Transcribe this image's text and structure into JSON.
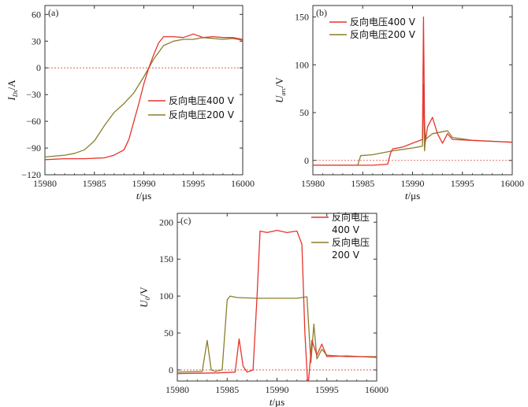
{
  "colors": {
    "v400": "#e8332c",
    "v200": "#8a7e2c",
    "zero": "#d44a3a",
    "axis": "#333333"
  },
  "xlabel": {
    "italic": "t",
    "rest": "/μs"
  },
  "chart_data": [
    {
      "id": "a",
      "type": "line",
      "panel_label": "(a)",
      "ylabel": {
        "main": "I",
        "sub": "Ds",
        "rest": "/A"
      },
      "xlim": [
        15980,
        16000
      ],
      "ylim": [
        -120,
        70
      ],
      "xticks": [
        "15980",
        "15985",
        "15990",
        "15995",
        "16000"
      ],
      "yticks": [
        "60",
        "30",
        "0",
        "−30",
        "−60",
        "−90",
        "−120"
      ],
      "ytick_values": [
        60,
        30,
        0,
        -30,
        -60,
        -90,
        -120
      ],
      "zero_line": true,
      "legend": [
        "反向电压400 V",
        "反向电压200 V"
      ],
      "series": [
        {
          "name": "反向电压400 V",
          "color": "#e8332c",
          "x": [
            15980,
            15982,
            15984,
            15986,
            15987,
            15988,
            15988.5,
            15989,
            15989.5,
            15990,
            15990.5,
            15991,
            15991.5,
            15992,
            15993,
            15994,
            15995,
            15996,
            15997,
            15998,
            15999,
            16000
          ],
          "y": [
            -103,
            -102,
            -102,
            -101,
            -98,
            -92,
            -80,
            -60,
            -40,
            -18,
            0,
            15,
            28,
            35,
            35,
            34,
            38,
            34,
            35,
            34,
            34,
            32
          ]
        },
        {
          "name": "反向电压200 V",
          "color": "#8a7e2c",
          "x": [
            15980,
            15982,
            15983,
            15984,
            15985,
            15986,
            15987,
            15988,
            15989,
            15990,
            15991,
            15992,
            15993,
            15994,
            15995,
            15996,
            15997,
            15998,
            15999,
            16000
          ],
          "y": [
            -100,
            -98,
            -96,
            -92,
            -82,
            -65,
            -50,
            -40,
            -28,
            -10,
            10,
            25,
            30,
            32,
            32,
            34,
            33,
            32,
            33,
            31
          ]
        }
      ]
    },
    {
      "id": "b",
      "type": "line",
      "panel_label": "(b)",
      "ylabel": {
        "main": "U",
        "sub": "arc",
        "rest": "/V"
      },
      "xlim": [
        15980,
        16000
      ],
      "ylim": [
        -15,
        162
      ],
      "xticks": [
        "15980",
        "15985",
        "15990",
        "15995",
        "16000"
      ],
      "yticks": [
        "150",
        "100",
        "50",
        "0"
      ],
      "ytick_values": [
        150,
        100,
        50,
        0
      ],
      "zero_line": true,
      "legend": [
        "反向电压400 V",
        "反向电压200 V"
      ],
      "series": [
        {
          "name": "反向电压400 V",
          "color": "#e8332c",
          "x": [
            15980,
            15982,
            15984,
            15986,
            15987.5,
            15987.8,
            15988,
            15989,
            15990,
            15991,
            15991.1,
            15991.2,
            15991.3,
            15991.5,
            15992,
            15992.5,
            15993,
            15993.5,
            15994,
            15996,
            15998,
            16000
          ],
          "y": [
            -5,
            -5,
            -5,
            -5,
            -4,
            8,
            12,
            14,
            18,
            22,
            150,
            40,
            20,
            35,
            45,
            28,
            18,
            28,
            22,
            21,
            20,
            19
          ]
        },
        {
          "name": "反向电压200 V",
          "color": "#8a7e2c",
          "x": [
            15980,
            15983,
            15984.5,
            15984.8,
            15986,
            15988,
            15990,
            15990.5,
            15991,
            15991.1,
            15991.2,
            15991.3,
            15992,
            15993,
            15993.5,
            15994,
            15996,
            15998,
            16000
          ],
          "y": [
            -5,
            -5,
            -5,
            5,
            6,
            10,
            13,
            14,
            15,
            80,
            10,
            22,
            28,
            30,
            31,
            24,
            21,
            20,
            19
          ]
        }
      ]
    },
    {
      "id": "c",
      "type": "line",
      "panel_label": "(c)",
      "ylabel": {
        "main": "U",
        "sub": "0",
        "rest": "/V"
      },
      "xlim": [
        15980,
        16000
      ],
      "ylim": [
        -15,
        212
      ],
      "xticks": [
        "15980",
        "15985",
        "15990",
        "15995",
        "16000"
      ],
      "yticks": [
        "200",
        "150",
        "100",
        "50",
        "0"
      ],
      "ytick_values": [
        200,
        150,
        100,
        50,
        0
      ],
      "zero_line": true,
      "legend": [
        "反向电压",
        "400 V",
        "反向电压",
        "200 V"
      ],
      "series": [
        {
          "name": "反向电压400 V",
          "color": "#e8332c",
          "x": [
            15980,
            15984,
            15985.8,
            15986.2,
            15986.6,
            15987,
            15987.6,
            15988,
            15988.3,
            15989,
            15990,
            15991,
            15992,
            15992.5,
            15992.8,
            15993.1,
            15993.5,
            15994,
            15994.5,
            15995,
            15997,
            16000
          ],
          "y": [
            -5,
            -4,
            -3,
            42,
            5,
            -3,
            0,
            100,
            188,
            186,
            189,
            186,
            188,
            170,
            50,
            -25,
            40,
            20,
            35,
            18,
            19,
            17
          ]
        },
        {
          "name": "反向电压200 V",
          "color": "#8a7e2c",
          "x": [
            15980,
            15982.5,
            15983,
            15983.4,
            15983.8,
            15984.5,
            15985,
            15985.3,
            15986,
            15988,
            15990,
            15992,
            15993,
            15993.4,
            15993.7,
            15994,
            15994.5,
            15995,
            15997,
            16000
          ],
          "y": [
            -3,
            -2,
            40,
            0,
            -2,
            0,
            95,
            100,
            98,
            97,
            97,
            97,
            99,
            10,
            62,
            15,
            28,
            20,
            18,
            18
          ]
        }
      ]
    }
  ]
}
